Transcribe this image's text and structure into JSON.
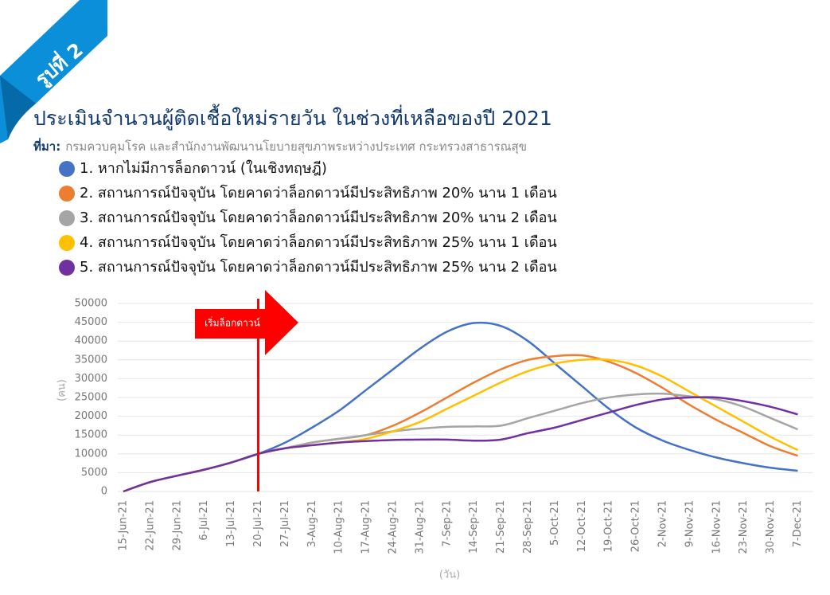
{
  "chart_data": {
    "type": "line",
    "badge": "รูปที่ 2",
    "title": "ประเมินจำนวนผู้ติดเชื้อใหม่รายวัน ในช่วงที่เหลือของปี 2021",
    "source_label": "ที่มา:",
    "source": "กรมควบคุมโรค และสำนักงานพัฒนานโยบายสุขภาพระหว่างประเทศ กระทรวงสาธารณสุข",
    "y_label": "(คน)",
    "x_label": "(วัน)",
    "annotation": {
      "text": "เริ่มล็อกดาวน์",
      "x": "20-Jul-21"
    },
    "categories": [
      "15-Jun-21",
      "22-Jun-21",
      "29-Jun-21",
      "6-Jul-21",
      "13-Jul-21",
      "20-Jul-21",
      "27-Jul-21",
      "3-Aug-21",
      "10-Aug-21",
      "17-Aug-21",
      "24-Aug-21",
      "31-Aug-21",
      "7-Sep-21",
      "14-Sep-21",
      "21-Sep-21",
      "28-Sep-21",
      "5-Oct-21",
      "12-Oct-21",
      "19-Oct-21",
      "26-Oct-21",
      "2-Nov-21",
      "9-Nov-21",
      "16-Nov-21",
      "23-Nov-21",
      "30-Nov-21",
      "7-Dec-21"
    ],
    "series": [
      {
        "name": "1. หากไม่มีการล็อกดาวน์ (ในเชิงทฤษฎี)",
        "color": "#4472c4",
        "values": [
          0,
          2500,
          4200,
          5800,
          7700,
          10000,
          13000,
          17000,
          21500,
          27000,
          32500,
          38000,
          42500,
          44800,
          44000,
          40000,
          34000,
          28000,
          22000,
          17000,
          13500,
          11000,
          9000,
          7500,
          6300,
          5500
        ]
      },
      {
        "name": "2. สถานการณ์ปัจจุบัน โดยคาดว่าล็อกดาวน์มีประสิทธิภาพ 20% นาน 1 เดือน",
        "color": "#ed7d31",
        "values": [
          0,
          2500,
          4200,
          5800,
          7700,
          10000,
          11500,
          13000,
          14000,
          15000,
          17500,
          21000,
          25000,
          29000,
          32500,
          35000,
          36000,
          36200,
          34500,
          31500,
          27500,
          23000,
          19000,
          15500,
          12000,
          9500
        ]
      },
      {
        "name": "3. สถานการณ์ปัจจุบัน โดยคาดว่าล็อกดาวน์มีประสิทธิภาพ 20% นาน 2 เดือน",
        "color": "#a5a5a5",
        "values": [
          0,
          2500,
          4200,
          5800,
          7700,
          10000,
          11500,
          13000,
          14000,
          15000,
          16000,
          16700,
          17200,
          17300,
          17500,
          19500,
          21500,
          23500,
          25000,
          25800,
          26000,
          25300,
          24500,
          22500,
          19500,
          16500
        ]
      },
      {
        "name": "4. สถานการณ์ปัจจุบัน โดยคาดว่าล็อกดาวน์มีประสิทธิภาพ 25% นาน 1 เดือน",
        "color": "#ffc000",
        "values": [
          0,
          2500,
          4200,
          5800,
          7700,
          10000,
          11500,
          12300,
          13000,
          14000,
          16000,
          18500,
          22000,
          25500,
          29000,
          32000,
          34000,
          35000,
          35000,
          33500,
          30500,
          26500,
          22500,
          18500,
          14500,
          11000
        ]
      },
      {
        "name": "5. สถานการณ์ปัจจุบัน โดยคาดว่าล็อกดาวน์มีประสิทธิภาพ 25% นาน 2 เดือน",
        "color": "#7030a0",
        "values": [
          0,
          2500,
          4200,
          5800,
          7700,
          10000,
          11500,
          12300,
          13000,
          13400,
          13700,
          13800,
          13800,
          13500,
          13800,
          15500,
          17000,
          19000,
          21000,
          23000,
          24500,
          25000,
          25000,
          24000,
          22500,
          20500
        ]
      }
    ],
    "ylim": [
      0,
      50000
    ],
    "yticks": [
      0,
      5000,
      10000,
      15000,
      20000,
      25000,
      30000,
      35000,
      40000,
      45000,
      50000
    ],
    "grid": true
  }
}
